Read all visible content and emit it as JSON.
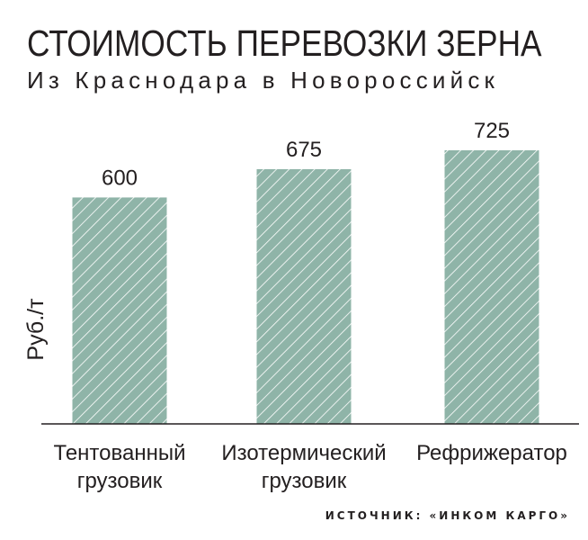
{
  "header": {
    "title": "СТОИМОСТЬ ПЕРЕВОЗКИ ЗЕРНА",
    "subtitle": "Из Краснодара в Новороссийск"
  },
  "source": "ИСТОЧНИК: «ИНКОМ КАРГО»",
  "colors": {
    "bar_fill": "#8fb4a8",
    "bar_hatch": "#ffffff",
    "axis": "#231f20",
    "text": "#231f20"
  },
  "chart_data": {
    "type": "bar",
    "title": "СТОИМОСТЬ ПЕРЕВОЗКИ ЗЕРНА",
    "subtitle": "Из Краснодара в Новороссийск",
    "xlabel": "",
    "ylabel": "Руб./т",
    "categories": [
      [
        "Тентованный",
        "грузовик"
      ],
      [
        "Изотермический",
        "грузовик"
      ],
      [
        "Рефрижератор"
      ]
    ],
    "values": [
      600,
      675,
      725
    ],
    "data_labels": [
      "600",
      "675",
      "725"
    ],
    "ylim": [
      0,
      725
    ],
    "grid": false,
    "legend": "none",
    "bar_pattern": "diagonal-hatch"
  }
}
